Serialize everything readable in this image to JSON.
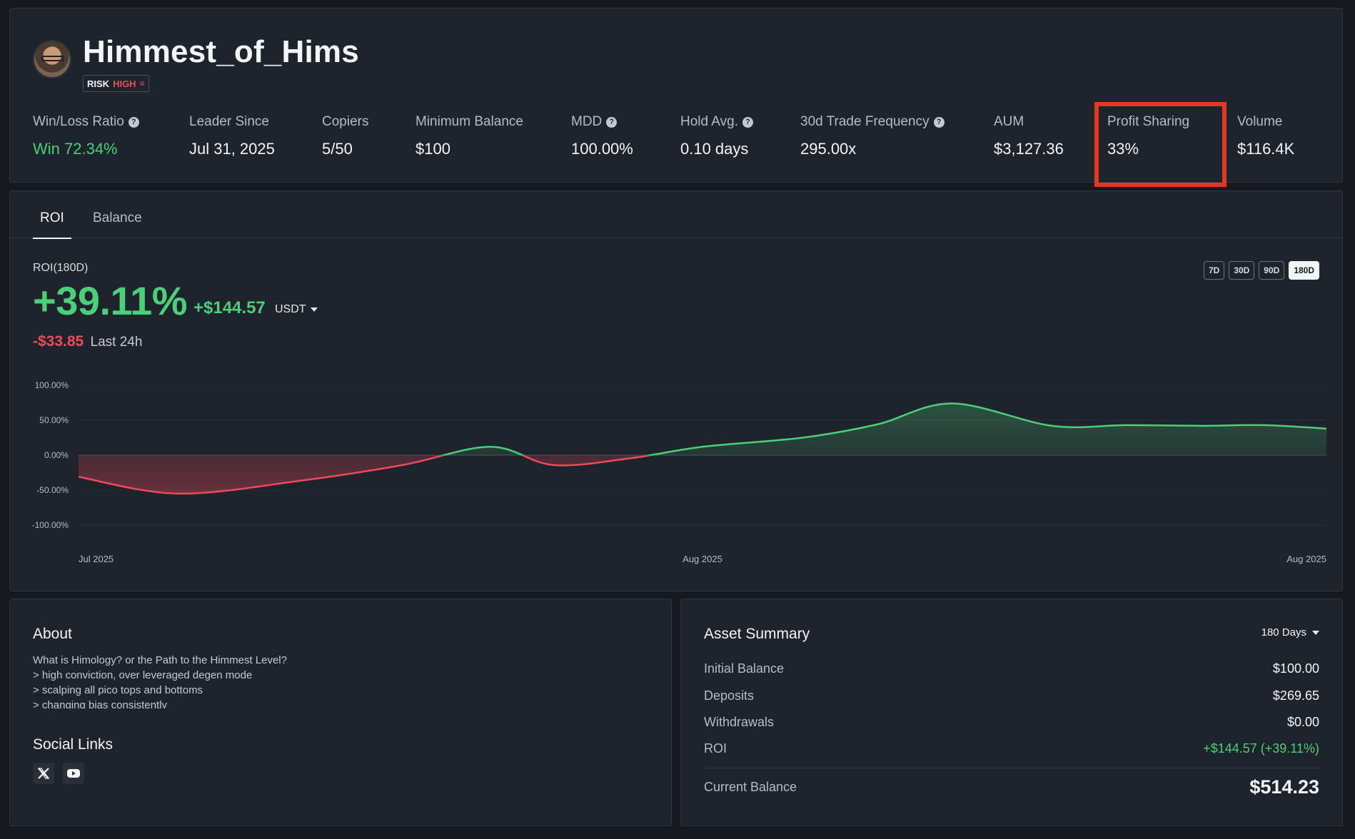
{
  "trader": {
    "name": "Himmest_of_Hims",
    "risk_label": "RISK",
    "risk_level": "HIGH",
    "risk_icon": "signal-bars-icon"
  },
  "stats": [
    {
      "label": "Win/Loss Ratio",
      "value": "Win 72.34%",
      "help": true,
      "value_color": "green"
    },
    {
      "label": "Leader Since",
      "value": "Jul 31, 2025",
      "help": false
    },
    {
      "label": "Copiers",
      "value": "5/50",
      "help": false
    },
    {
      "label": "Minimum Balance",
      "value": "$100",
      "help": false
    },
    {
      "label": "MDD",
      "value": "100.00%",
      "help": true
    },
    {
      "label": "Hold Avg.",
      "value": "0.10 days",
      "help": true
    },
    {
      "label": "30d Trade Frequency",
      "value": "295.00x",
      "help": true
    },
    {
      "label": "AUM",
      "value": "$3,127.36",
      "help": false
    },
    {
      "label": "Profit Sharing",
      "value": "33%",
      "help": false,
      "highlighted": true
    },
    {
      "label": "Volume",
      "value": "$116.4K",
      "help": false
    }
  ],
  "help_icon_glyph": "?",
  "tabs": [
    {
      "label": "ROI",
      "active": true
    },
    {
      "label": "Balance",
      "active": false
    }
  ],
  "roi": {
    "title": "ROI(180D)",
    "percent": "+39.11%",
    "absolute": "+$144.57",
    "currency": "USDT",
    "change_24h": "-$33.85",
    "change_24h_label": "Last 24h",
    "ranges": [
      "7D",
      "30D",
      "90D",
      "180D"
    ],
    "active_range": "180D"
  },
  "chart_data": {
    "type": "area",
    "x_tick_labels": [
      "Jul 2025",
      "Aug 2025",
      "Aug 2025"
    ],
    "y_tick_labels": [
      "100.00%",
      "50.00%",
      "0.00%",
      "-50.00%",
      "-100.00%"
    ],
    "ylim": [
      -100,
      100
    ],
    "series": [
      {
        "x": [
          0,
          0.08,
          0.18,
          0.26,
          0.33,
          0.38,
          0.44,
          0.5,
          0.58,
          0.64,
          0.7,
          0.78,
          0.84,
          0.9,
          0.95,
          1.0
        ],
        "values": [
          -31,
          -55,
          -36,
          -14,
          12,
          -14,
          -5,
          12,
          25,
          44,
          74,
          42,
          43,
          42,
          43,
          38
        ]
      }
    ],
    "positive_color": "#4bd07a",
    "negative_color": "#ef4a5c",
    "grid": true
  },
  "about": {
    "title": "About",
    "lines": [
      "What is Himology? or the Path to the Himmest Level?",
      "> high conviction, over leveraged degen mode",
      "> scalping all pico tops and bottoms",
      "> changing bias consistently"
    ],
    "social_title": "Social Links",
    "social_icons": [
      "x-twitter-icon",
      "youtube-icon"
    ]
  },
  "asset_summary": {
    "title": "Asset Summary",
    "period": "180 Days",
    "rows": [
      {
        "label": "Initial Balance",
        "value": "$100.00"
      },
      {
        "label": "Deposits",
        "value": "$269.65"
      },
      {
        "label": "Withdrawals",
        "value": "$0.00"
      },
      {
        "label": "ROI",
        "value": "+$144.57 (+39.11%)",
        "color": "green"
      }
    ],
    "current_label": "Current Balance",
    "current_value": "$514.23"
  }
}
